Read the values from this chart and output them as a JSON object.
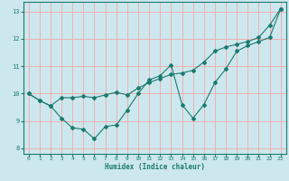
{
  "xlabel": "Humidex (Indice chaleur)",
  "bg_color": "#cce8ee",
  "grid_color": "#f0b0b0",
  "line_color": "#1a7a6e",
  "xlim": [
    -0.5,
    23.5
  ],
  "ylim": [
    7.8,
    13.35
  ],
  "xticks": [
    0,
    1,
    2,
    3,
    4,
    5,
    6,
    7,
    8,
    9,
    10,
    11,
    12,
    13,
    14,
    15,
    16,
    17,
    18,
    19,
    20,
    21,
    22,
    23
  ],
  "yticks": [
    8,
    9,
    10,
    11,
    12,
    13
  ],
  "line1_x": [
    0,
    1,
    2,
    3,
    4,
    5,
    6,
    7,
    8,
    9,
    10,
    11,
    12,
    13,
    14,
    15,
    16,
    17,
    18,
    19,
    20,
    21,
    22,
    23
  ],
  "line1_y": [
    10.0,
    9.75,
    9.55,
    9.1,
    8.75,
    8.7,
    8.35,
    8.8,
    8.85,
    9.4,
    10.0,
    10.5,
    10.65,
    11.05,
    9.6,
    9.1,
    9.6,
    10.4,
    10.9,
    11.55,
    11.75,
    11.9,
    12.05,
    13.1
  ],
  "line2_x": [
    0,
    1,
    2,
    3,
    4,
    5,
    6,
    7,
    8,
    9,
    10,
    11,
    12,
    13,
    14,
    15,
    16,
    17,
    18,
    19,
    20,
    21,
    22,
    23
  ],
  "line2_y": [
    10.0,
    9.75,
    9.55,
    9.85,
    9.85,
    9.9,
    9.85,
    9.95,
    10.05,
    9.95,
    10.2,
    10.4,
    10.55,
    10.7,
    10.75,
    10.85,
    11.15,
    11.55,
    11.7,
    11.8,
    11.9,
    12.05,
    12.5,
    13.1
  ]
}
